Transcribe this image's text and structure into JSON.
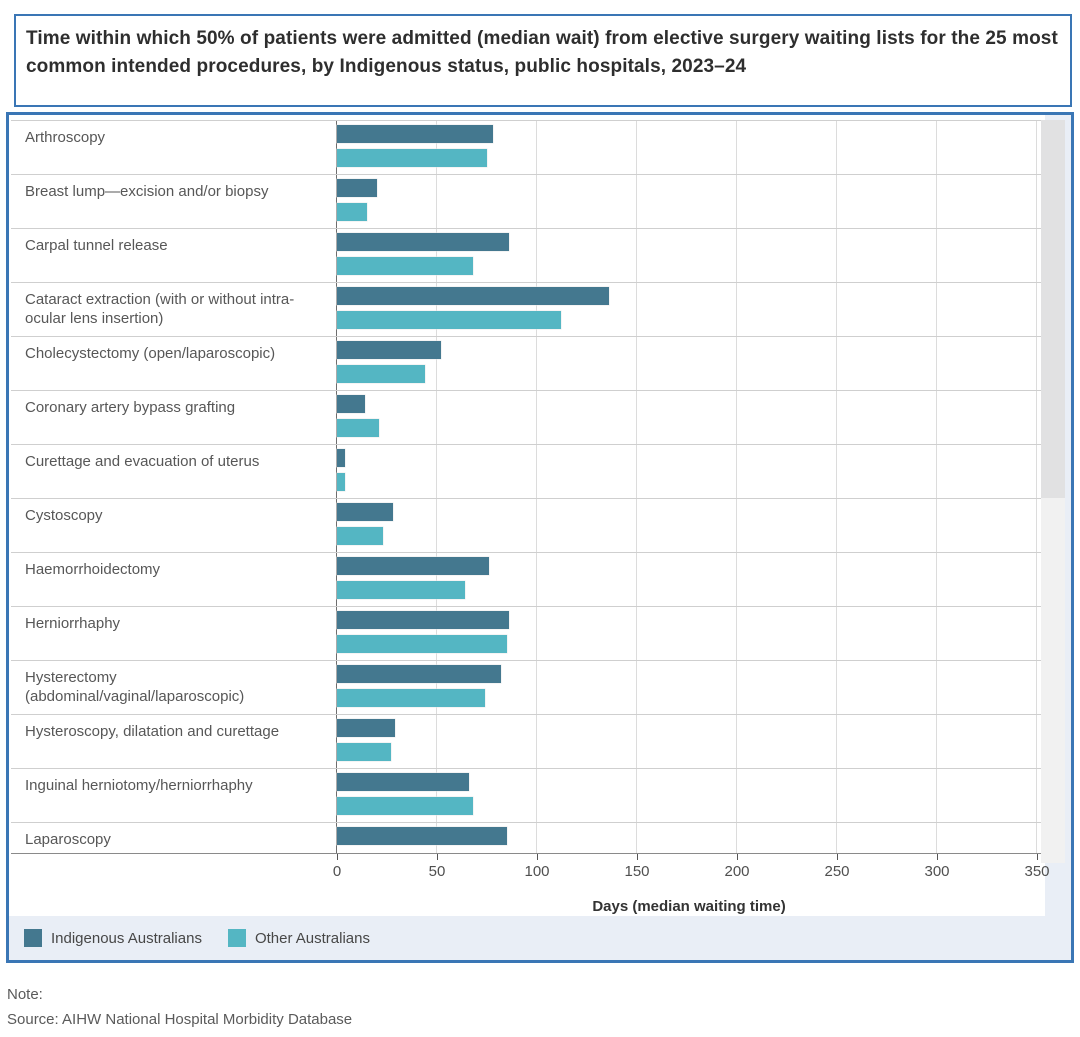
{
  "title": "Time within which 50% of patients were admitted (median wait) from elective surgery waiting lists for the 25 most common intended procedures, by Indigenous status, public hospitals, 2023–24",
  "chart_data": {
    "type": "bar",
    "orientation": "horizontal",
    "title": "Time within which 50% of patients were admitted (median wait) from elective surgery waiting lists for the 25 most common intended procedures, by Indigenous status, public hospitals, 2023–24",
    "categories": [
      "Arthroscopy",
      "Breast lump—excision and/or biopsy",
      "Carpal tunnel release",
      "Cataract extraction (with or without intra-ocular lens insertion)",
      "Cholecystectomy (open/laparoscopic)",
      "Coronary artery bypass grafting",
      "Curettage and evacuation of uterus",
      "Cystoscopy",
      "Haemorrhoidectomy",
      "Herniorrhaphy",
      "Hysterectomy (abdominal/vaginal/laparoscopic)",
      "Hysteroscopy, dilatation and curettage",
      "Inguinal herniotomy/herniorrhaphy",
      "Laparoscopy"
    ],
    "series": [
      {
        "name": "Indigenous Australians",
        "color": "#44788f",
        "values": [
          78,
          20,
          86,
          136,
          52,
          14,
          4,
          28,
          76,
          86,
          82,
          29,
          66,
          85
        ]
      },
      {
        "name": "Other Australians",
        "color": "#54b6c3",
        "values": [
          75,
          15,
          68,
          112,
          44,
          21,
          4,
          23,
          64,
          85,
          74,
          27,
          68,
          null
        ]
      }
    ],
    "xlabel": "Days (median waiting time)",
    "x_ticks": [
      0,
      50,
      100,
      150,
      200,
      250,
      300,
      350
    ],
    "xlim": [
      0,
      352
    ],
    "grid": "vertical, every 50 days",
    "legend_position": "bottom-left",
    "layout_note": "scrollable list; last visible row (Laparoscopy) is clipped and shows only the Indigenous series bar"
  },
  "legend": {
    "items": [
      {
        "label": "Indigenous Australians",
        "color": "#44788f"
      },
      {
        "label": "Other Australians",
        "color": "#54b6c3"
      }
    ]
  },
  "footer": {
    "note_label": "Note:",
    "source": "Source: AIHW National Hospital Morbidity Database"
  },
  "colors": {
    "border_blue": "#3a76b5",
    "indigenous": "#44788f",
    "other": "#54b6c3",
    "legend_band": "#e9eef6",
    "row_line": "#cfcfcf"
  }
}
